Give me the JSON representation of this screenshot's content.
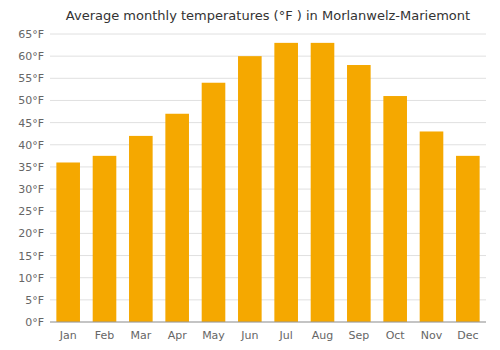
{
  "chart_data": {
    "type": "bar",
    "title": "Average monthly temperatures (°F ) in Morlanwelz-Mariemont",
    "categories": [
      "Jan",
      "Feb",
      "Mar",
      "Apr",
      "May",
      "Jun",
      "Jul",
      "Aug",
      "Sep",
      "Oct",
      "Nov",
      "Dec"
    ],
    "values": [
      36,
      37.5,
      42,
      47,
      54,
      60,
      63,
      63,
      58,
      51,
      43,
      37.5
    ],
    "color": "#F5A800",
    "ylim": [
      0,
      65
    ],
    "yticks": [
      {
        "value": 0,
        "label": "0°F"
      },
      {
        "value": 5,
        "label": "5°F"
      },
      {
        "value": 10,
        "label": "10°F"
      },
      {
        "value": 15,
        "label": "15°F"
      },
      {
        "value": 20,
        "label": "20°F"
      },
      {
        "value": 25,
        "label": "25°F"
      },
      {
        "value": 30,
        "label": "30°F"
      },
      {
        "value": 35,
        "label": "35°F"
      },
      {
        "value": 40,
        "label": "40°F"
      },
      {
        "value": 45,
        "label": "45°F"
      },
      {
        "value": 50,
        "label": "50°F"
      },
      {
        "value": 55,
        "label": "55°F"
      },
      {
        "value": 60,
        "label": "60°F"
      },
      {
        "value": 65,
        "label": "65°F"
      }
    ],
    "grid": true
  }
}
